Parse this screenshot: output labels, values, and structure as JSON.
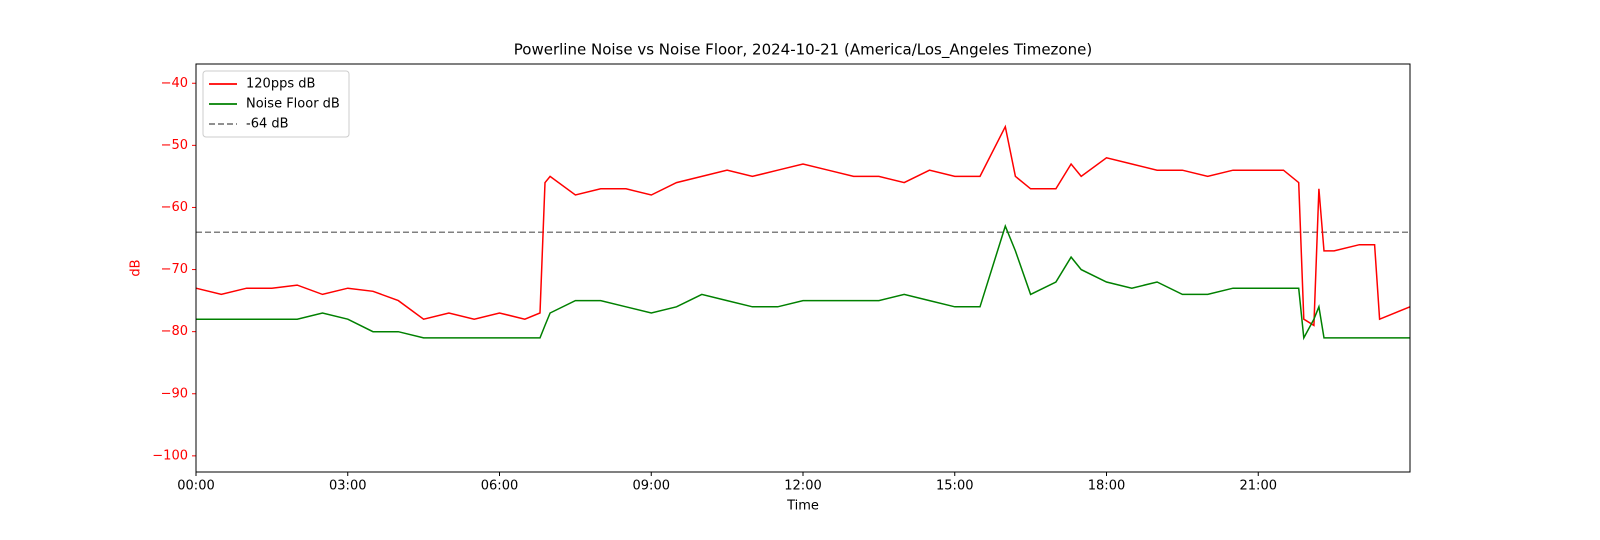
{
  "chart_data": {
    "type": "line",
    "title": "Powerline Noise vs Noise Floor, 2024-10-21 (America/Los_Angeles Timezone)",
    "xlabel": "Time",
    "ylabel": "dB",
    "axis_color": "#ff0000",
    "legend": "upper left",
    "x": [
      0,
      0.5,
      1,
      1.5,
      2,
      2.5,
      3,
      3.5,
      4,
      4.5,
      5,
      5.5,
      6,
      6.5,
      6.8,
      6.9,
      7,
      7.5,
      8,
      8.5,
      9,
      9.5,
      10,
      10.5,
      11,
      11.5,
      12,
      12.5,
      13,
      13.5,
      14,
      14.5,
      15,
      15.5,
      16,
      16.2,
      16.5,
      17,
      17.3,
      17.5,
      18,
      18.5,
      19,
      19.5,
      20,
      20.5,
      21,
      21.5,
      21.8,
      21.9,
      22.1,
      22.2,
      22.3,
      22.5,
      23,
      23.3,
      23.4,
      24
    ],
    "series": [
      {
        "name": "120pps dB",
        "color": "#ff0000",
        "values": [
          -73,
          -74,
          -73,
          -73,
          -72.5,
          -74,
          -73,
          -73.5,
          -75,
          -78,
          -77,
          -78,
          -77,
          -78,
          -77,
          -56,
          -55,
          -58,
          -57,
          -57,
          -58,
          -56,
          -55,
          -54,
          -55,
          -54,
          -53,
          -54,
          -55,
          -55,
          -56,
          -54,
          -55,
          -55,
          -47,
          -55,
          -57,
          -57,
          -53,
          -55,
          -52,
          -53,
          -54,
          -54,
          -55,
          -54,
          -54,
          -54,
          -56,
          -78,
          -79,
          -57,
          -67,
          -67,
          -66,
          -66,
          -78,
          -76
        ]
      },
      {
        "name": "Noise Floor dB",
        "color": "#008000",
        "values": [
          -78,
          -78,
          -78,
          -78,
          -78,
          -77,
          -78,
          -80,
          -80,
          -81,
          -81,
          -81,
          -81,
          -81,
          -81,
          -79,
          -77,
          -75,
          -75,
          -76,
          -77,
          -76,
          -74,
          -75,
          -76,
          -76,
          -75,
          -75,
          -75,
          -75,
          -74,
          -75,
          -76,
          -76,
          -63,
          -67,
          -74,
          -72,
          -68,
          -70,
          -72,
          -73,
          -72,
          -74,
          -74,
          -73,
          -73,
          -73,
          -73,
          -81,
          -78,
          -76,
          -81,
          -81,
          -81,
          -81,
          -81,
          -81
        ]
      }
    ],
    "hline": {
      "name": "-64 dB",
      "value": -64,
      "color": "#808080"
    },
    "xlim": [
      0,
      24
    ],
    "xticks": [
      {
        "value": 0,
        "label": "00:00"
      },
      {
        "value": 3,
        "label": "03:00"
      },
      {
        "value": 6,
        "label": "06:00"
      },
      {
        "value": 9,
        "label": "09:00"
      },
      {
        "value": 12,
        "label": "12:00"
      },
      {
        "value": 15,
        "label": "15:00"
      },
      {
        "value": 18,
        "label": "18:00"
      },
      {
        "value": 21,
        "label": "21:00"
      }
    ],
    "ylim": [
      -102.6,
      -36.9
    ],
    "yticks": [
      {
        "value": -100,
        "label": "−100"
      },
      {
        "value": -90,
        "label": "−90"
      },
      {
        "value": -80,
        "label": "−80"
      },
      {
        "value": -70,
        "label": "−70"
      },
      {
        "value": -60,
        "label": "−60"
      },
      {
        "value": -50,
        "label": "−50"
      },
      {
        "value": -40,
        "label": "−40"
      }
    ]
  }
}
